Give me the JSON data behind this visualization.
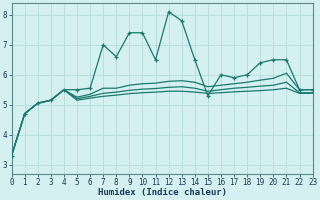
{
  "xlabel": "Humidex (Indice chaleur)",
  "x_values": [
    0,
    1,
    2,
    3,
    4,
    5,
    6,
    7,
    8,
    9,
    10,
    11,
    12,
    13,
    14,
    15,
    16,
    17,
    18,
    19,
    20,
    21,
    22,
    23
  ],
  "line1": [
    3.3,
    4.7,
    5.05,
    5.15,
    5.5,
    5.5,
    5.55,
    7.0,
    6.6,
    7.4,
    7.4,
    6.5,
    8.1,
    7.8,
    6.5,
    5.3,
    6.0,
    5.9,
    6.0,
    6.4,
    6.5,
    6.5,
    5.5,
    5.5
  ],
  "line2": [
    3.3,
    4.7,
    5.05,
    5.15,
    5.5,
    5.25,
    5.35,
    5.55,
    5.55,
    5.65,
    5.7,
    5.72,
    5.78,
    5.8,
    5.75,
    5.6,
    5.65,
    5.7,
    5.75,
    5.82,
    5.88,
    6.05,
    5.5,
    5.5
  ],
  "line3": [
    3.3,
    4.7,
    5.05,
    5.15,
    5.5,
    5.2,
    5.28,
    5.38,
    5.42,
    5.48,
    5.52,
    5.54,
    5.58,
    5.6,
    5.55,
    5.45,
    5.5,
    5.55,
    5.58,
    5.62,
    5.65,
    5.75,
    5.4,
    5.4
  ],
  "line4": [
    3.3,
    4.7,
    5.05,
    5.15,
    5.5,
    5.15,
    5.22,
    5.28,
    5.32,
    5.37,
    5.4,
    5.42,
    5.45,
    5.45,
    5.42,
    5.38,
    5.4,
    5.43,
    5.45,
    5.47,
    5.5,
    5.55,
    5.38,
    5.38
  ],
  "line_color": "#1a7a6e",
  "bg_color": "#d4f0f0",
  "grid_color": "#b8dede",
  "ylim": [
    2.7,
    8.4
  ],
  "xlim": [
    0,
    23
  ],
  "yticks": [
    3,
    4,
    5,
    6,
    7,
    8
  ],
  "xticks": [
    0,
    1,
    2,
    3,
    4,
    5,
    6,
    7,
    8,
    9,
    10,
    11,
    12,
    13,
    14,
    15,
    16,
    17,
    18,
    19,
    20,
    21,
    22,
    23
  ]
}
